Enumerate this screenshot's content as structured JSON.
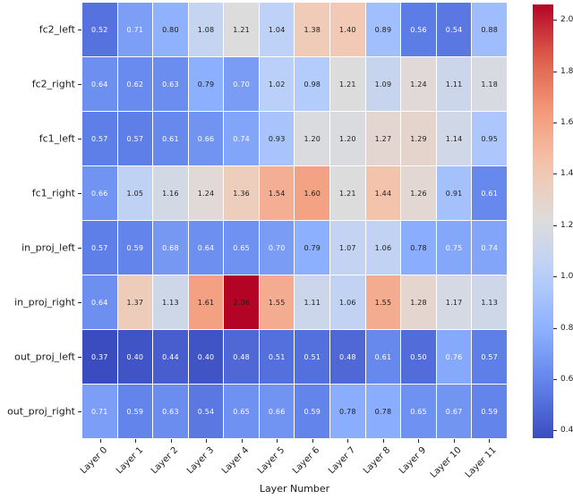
{
  "figure": {
    "xlabel": "Layer Number"
  },
  "chart_data": {
    "type": "heatmap",
    "title": "",
    "xlabel": "Layer Number",
    "ylabel": "",
    "rows": [
      "fc2_left",
      "fc2_right",
      "fc1_left",
      "fc1_right",
      "in_proj_left",
      "in_proj_right",
      "out_proj_left",
      "out_proj_right"
    ],
    "columns": [
      "Layer 0",
      "Layer 1",
      "Layer 2",
      "Layer 3",
      "Layer 4",
      "Layer 5",
      "Layer 6",
      "Layer 7",
      "Layer 8",
      "Layer 9",
      "Layer 10",
      "Layer 11"
    ],
    "values": [
      [
        0.52,
        0.71,
        0.8,
        1.08,
        1.21,
        1.04,
        1.38,
        1.4,
        0.89,
        0.56,
        0.54,
        0.88
      ],
      [
        0.64,
        0.62,
        0.63,
        0.79,
        0.7,
        1.02,
        0.98,
        1.21,
        1.09,
        1.24,
        1.11,
        1.18
      ],
      [
        0.57,
        0.57,
        0.61,
        0.66,
        0.74,
        0.93,
        1.2,
        1.2,
        1.27,
        1.29,
        1.14,
        0.95
      ],
      [
        0.66,
        1.05,
        1.16,
        1.24,
        1.36,
        1.54,
        1.6,
        1.21,
        1.44,
        1.26,
        0.91,
        0.61
      ],
      [
        0.57,
        0.59,
        0.68,
        0.64,
        0.65,
        0.7,
        0.79,
        1.07,
        1.06,
        0.78,
        0.75,
        0.74
      ],
      [
        0.64,
        1.37,
        1.13,
        1.61,
        2.06,
        1.55,
        1.11,
        1.06,
        1.55,
        1.28,
        1.17,
        1.13
      ],
      [
        0.37,
        0.4,
        0.44,
        0.4,
        0.48,
        0.51,
        0.51,
        0.48,
        0.61,
        0.5,
        0.76,
        0.57
      ],
      [
        0.71,
        0.59,
        0.63,
        0.54,
        0.65,
        0.66,
        0.59,
        0.78,
        0.78,
        0.65,
        0.67,
        0.59
      ]
    ],
    "vmin": 0.37,
    "vmax": 2.06,
    "colormap": "coolwarm",
    "grid": false,
    "legend_position": "colorbar-right",
    "colorbar_ticks": [
      "2.0",
      "1.8",
      "1.6",
      "1.4",
      "1.2",
      "1.0",
      "0.8",
      "0.6",
      "0.4"
    ],
    "annotation_decimals": 2,
    "annotation_colors": {
      "light_text": "#ffffff",
      "dark_text": "#1c1c1c",
      "light_text_below_value": 0.77
    },
    "colors": {
      "cmap_low": "#3b4cc0",
      "cmap_mid": "#dddddd",
      "cmap_high": "#b40426",
      "tick": "#262626",
      "label": "#1a1a1a",
      "background": "#ffffff"
    }
  }
}
